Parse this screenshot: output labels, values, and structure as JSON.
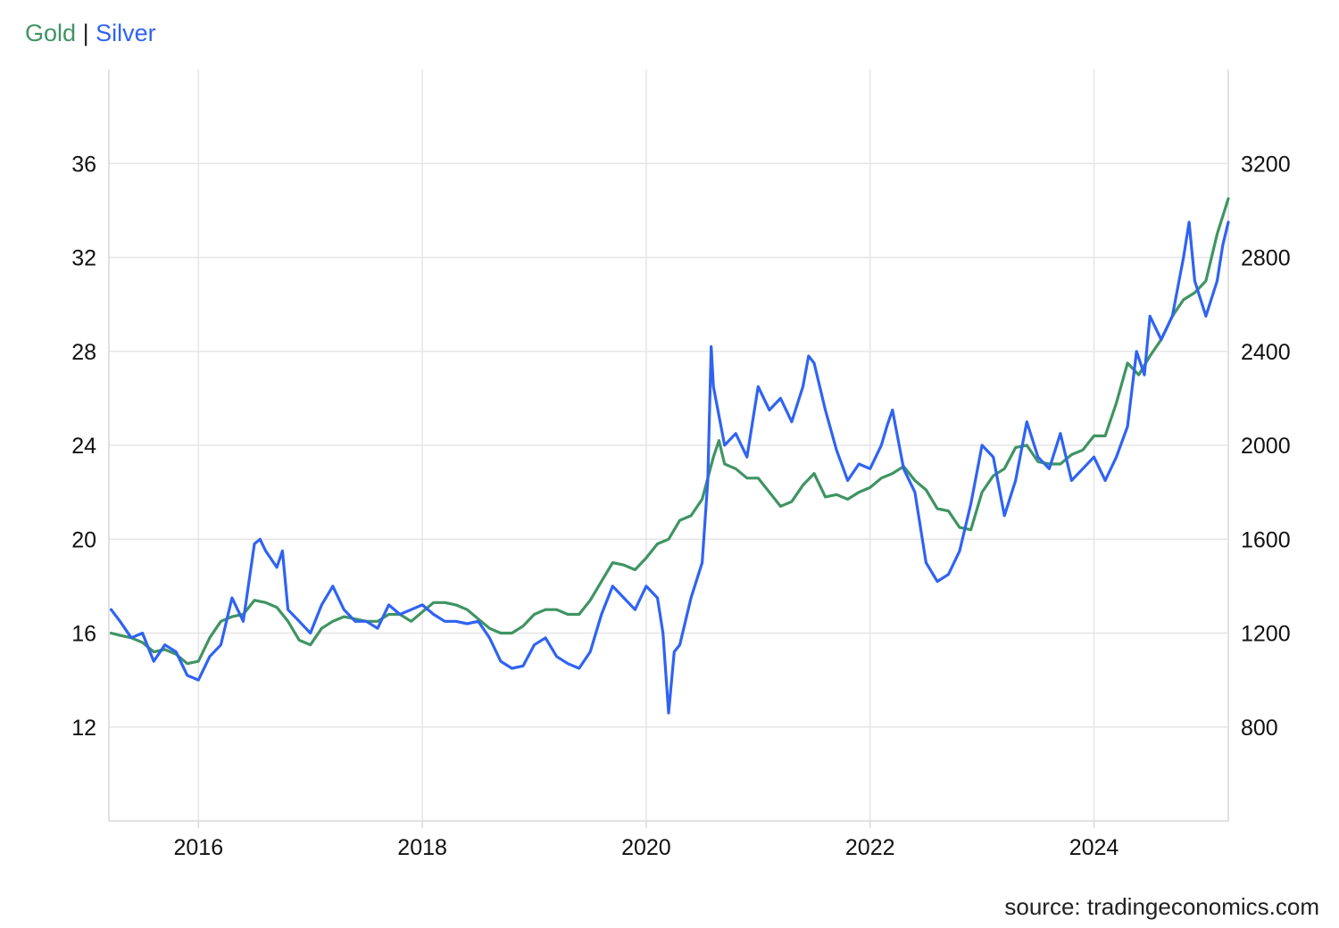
{
  "legend": {
    "gold_label": "Gold",
    "separator": "|",
    "silver_label": "Silver"
  },
  "source": "source: tradingeconomics.com",
  "colors": {
    "gold": "#3f9463",
    "silver": "#2f63f2",
    "grid": "#e6e6e6",
    "axis": "#d9d9d9"
  },
  "chart_data": {
    "type": "line",
    "title": "",
    "legend_position": "top-left",
    "grid": true,
    "xlabel": "",
    "x_ticks": [
      "2016",
      "2018",
      "2020",
      "2022",
      "2024"
    ],
    "x_range": [
      2015.2,
      2025.2
    ],
    "y_left": {
      "ticks": [
        "12",
        "16",
        "20",
        "24",
        "28",
        "32",
        "36"
      ],
      "range": [
        8,
        40
      ],
      "series": "Silver"
    },
    "y_right": {
      "ticks": [
        "800",
        "1200",
        "1600",
        "2000",
        "2400",
        "2800",
        "3200"
      ],
      "range": [
        400,
        3600
      ],
      "series": "Gold"
    },
    "series": [
      {
        "name": "Silver",
        "axis": "left",
        "x": [
          2015.22,
          2015.3,
          2015.4,
          2015.5,
          2015.6,
          2015.7,
          2015.8,
          2015.9,
          2016.0,
          2016.1,
          2016.2,
          2016.3,
          2016.4,
          2016.5,
          2016.55,
          2016.6,
          2016.7,
          2016.75,
          2016.8,
          2016.9,
          2017.0,
          2017.1,
          2017.2,
          2017.3,
          2017.4,
          2017.5,
          2017.6,
          2017.7,
          2017.8,
          2017.9,
          2018.0,
          2018.1,
          2018.2,
          2018.3,
          2018.4,
          2018.5,
          2018.6,
          2018.7,
          2018.8,
          2018.9,
          2019.0,
          2019.1,
          2019.2,
          2019.3,
          2019.4,
          2019.5,
          2019.6,
          2019.7,
          2019.8,
          2019.9,
          2020.0,
          2020.1,
          2020.15,
          2020.2,
          2020.25,
          2020.3,
          2020.4,
          2020.5,
          2020.55,
          2020.58,
          2020.6,
          2020.7,
          2020.8,
          2020.9,
          2021.0,
          2021.1,
          2021.2,
          2021.3,
          2021.4,
          2021.45,
          2021.5,
          2021.6,
          2021.7,
          2021.8,
          2021.9,
          2022.0,
          2022.1,
          2022.15,
          2022.2,
          2022.3,
          2022.4,
          2022.5,
          2022.6,
          2022.7,
          2022.8,
          2022.9,
          2023.0,
          2023.1,
          2023.2,
          2023.3,
          2023.4,
          2023.5,
          2023.6,
          2023.7,
          2023.8,
          2023.9,
          2024.0,
          2024.1,
          2024.2,
          2024.3,
          2024.38,
          2024.45,
          2024.5,
          2024.6,
          2024.7,
          2024.8,
          2024.85,
          2024.9,
          2025.0,
          2025.1,
          2025.15,
          2025.2
        ],
        "values": [
          17.0,
          16.5,
          15.8,
          16.0,
          14.8,
          15.5,
          15.2,
          14.2,
          14.0,
          15.0,
          15.5,
          17.5,
          16.5,
          19.8,
          20.0,
          19.5,
          18.8,
          19.5,
          17.0,
          16.5,
          16.0,
          17.2,
          18.0,
          17.0,
          16.5,
          16.5,
          16.2,
          17.2,
          16.8,
          17.0,
          17.2,
          16.8,
          16.5,
          16.5,
          16.4,
          16.5,
          15.8,
          14.8,
          14.5,
          14.6,
          15.5,
          15.8,
          15.0,
          14.7,
          14.5,
          15.2,
          16.8,
          18.0,
          17.5,
          17.0,
          18.0,
          17.5,
          16.0,
          12.6,
          15.2,
          15.5,
          17.5,
          19.0,
          22.5,
          28.2,
          26.5,
          24.0,
          24.5,
          23.5,
          26.5,
          25.5,
          26.0,
          25.0,
          26.5,
          27.8,
          27.5,
          25.5,
          23.8,
          22.5,
          23.2,
          23.0,
          24.0,
          24.8,
          25.5,
          23.0,
          22.0,
          19.0,
          18.2,
          18.5,
          19.5,
          21.5,
          24.0,
          23.5,
          21.0,
          22.5,
          25.0,
          23.5,
          23.0,
          24.5,
          22.5,
          23.0,
          23.5,
          22.5,
          23.5,
          24.8,
          28.0,
          27.0,
          29.5,
          28.5,
          29.5,
          32.0,
          33.5,
          31.0,
          29.5,
          31.0,
          32.5,
          33.5
        ]
      },
      {
        "name": "Gold",
        "axis": "right",
        "x": [
          2015.22,
          2015.3,
          2015.4,
          2015.5,
          2015.6,
          2015.7,
          2015.8,
          2015.9,
          2016.0,
          2016.1,
          2016.2,
          2016.3,
          2016.4,
          2016.5,
          2016.6,
          2016.7,
          2016.8,
          2016.9,
          2017.0,
          2017.1,
          2017.2,
          2017.3,
          2017.4,
          2017.5,
          2017.6,
          2017.7,
          2017.8,
          2017.9,
          2018.0,
          2018.1,
          2018.2,
          2018.3,
          2018.4,
          2018.5,
          2018.6,
          2018.7,
          2018.8,
          2018.9,
          2019.0,
          2019.1,
          2019.2,
          2019.3,
          2019.4,
          2019.5,
          2019.6,
          2019.7,
          2019.8,
          2019.9,
          2020.0,
          2020.1,
          2020.2,
          2020.3,
          2020.4,
          2020.5,
          2020.6,
          2020.65,
          2020.7,
          2020.8,
          2020.9,
          2021.0,
          2021.1,
          2021.2,
          2021.3,
          2021.4,
          2021.5,
          2021.6,
          2021.7,
          2021.8,
          2021.9,
          2022.0,
          2022.1,
          2022.2,
          2022.3,
          2022.4,
          2022.5,
          2022.6,
          2022.7,
          2022.8,
          2022.9,
          2023.0,
          2023.1,
          2023.2,
          2023.3,
          2023.4,
          2023.5,
          2023.6,
          2023.7,
          2023.8,
          2023.9,
          2024.0,
          2024.1,
          2024.2,
          2024.3,
          2024.4,
          2024.5,
          2024.6,
          2024.7,
          2024.8,
          2024.9,
          2025.0,
          2025.1,
          2025.2
        ],
        "values": [
          1200,
          1190,
          1180,
          1160,
          1120,
          1130,
          1110,
          1070,
          1080,
          1180,
          1250,
          1270,
          1280,
          1340,
          1330,
          1310,
          1250,
          1170,
          1150,
          1220,
          1250,
          1270,
          1260,
          1250,
          1250,
          1280,
          1280,
          1250,
          1290,
          1330,
          1330,
          1320,
          1300,
          1260,
          1220,
          1200,
          1200,
          1230,
          1280,
          1300,
          1300,
          1280,
          1280,
          1340,
          1420,
          1500,
          1490,
          1470,
          1520,
          1580,
          1600,
          1680,
          1700,
          1770,
          1950,
          2020,
          1920,
          1900,
          1860,
          1860,
          1800,
          1740,
          1760,
          1830,
          1880,
          1780,
          1790,
          1770,
          1800,
          1820,
          1860,
          1880,
          1910,
          1850,
          1810,
          1730,
          1720,
          1650,
          1640,
          1800,
          1870,
          1900,
          1990,
          2000,
          1930,
          1920,
          1920,
          1960,
          1980,
          2040,
          2040,
          2180,
          2350,
          2300,
          2380,
          2450,
          2550,
          2620,
          2650,
          2700,
          2900,
          3050
        ]
      }
    ]
  }
}
